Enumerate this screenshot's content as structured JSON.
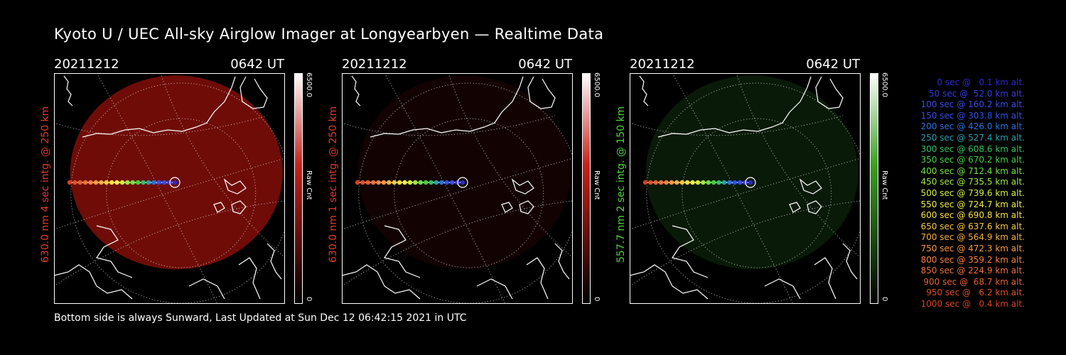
{
  "title": "Kyoto U / UEC All-sky Airglow Imager at Longyearbyen — Realtime Data",
  "footer": "Bottom side is always Sunward, Last Updated at Sun Dec 12 06:42:15 2021 in UTC",
  "panels": [
    {
      "date": "20211212",
      "time": "0642 UT",
      "side_label": "630.0 nm 4 sec intg. @ 250 km",
      "side_color": "#e03a2a",
      "cbar_max": "6500.0",
      "cbar_min": "0",
      "cbar_unit": "Raw Cnt",
      "glow_color": "#8b0f0a",
      "glow_level": 0.8,
      "cbar_color": "#c8201a"
    },
    {
      "date": "20211212",
      "time": "0642 UT",
      "side_label": "630.0 nm 1 sec intg. @ 250 km",
      "side_color": "#e03a2a",
      "cbar_max": "6500.0",
      "cbar_min": "0",
      "cbar_unit": "Raw Cnt",
      "glow_color": "#3a0806",
      "glow_level": 0.3,
      "cbar_color": "#c8201a"
    },
    {
      "date": "20211212",
      "time": "0642 UT",
      "side_label": "557.7 nm 2 sec intg. @ 150 km",
      "side_color": "#4cd43a",
      "cbar_max": "6500.0",
      "cbar_min": "0",
      "cbar_unit": "Raw Cnt",
      "glow_color": "#1a4a16",
      "glow_level": 0.35,
      "cbar_color": "#3aa020"
    }
  ],
  "legend": [
    {
      "text": "0 sec @   0.1 km alt.",
      "color": "#2a2ad0"
    },
    {
      "text": "50 sec @  52.0 km alt.",
      "color": "#3a3ae0"
    },
    {
      "text": "100 sec @ 160.2 km alt.",
      "color": "#3a4ae8"
    },
    {
      "text": "150 sec @ 303.8 km alt.",
      "color": "#3050e8"
    },
    {
      "text": "200 sec @ 426.0 km alt.",
      "color": "#2a70e0"
    },
    {
      "text": "250 sec @ 527.4 km alt.",
      "color": "#2aa0b0"
    },
    {
      "text": "300 sec @ 608.6 km alt.",
      "color": "#30c060"
    },
    {
      "text": "350 sec @ 670.2 km alt.",
      "color": "#40d040"
    },
    {
      "text": "400 sec @ 712.4 km alt.",
      "color": "#70e040"
    },
    {
      "text": "450 sec @ 735.5 km alt.",
      "color": "#a0e840"
    },
    {
      "text": "500 sec @ 739.6 km alt.",
      "color": "#d0f040"
    },
    {
      "text": "550 sec @ 724.7 km alt.",
      "color": "#f0f040"
    },
    {
      "text": "600 sec @ 690.8 km alt.",
      "color": "#f8e040"
    },
    {
      "text": "650 sec @ 637.6 km alt.",
      "color": "#f8c840"
    },
    {
      "text": "700 sec @ 564.9 km alt.",
      "color": "#f8b040"
    },
    {
      "text": "750 sec @ 472.3 km alt.",
      "color": "#f89840"
    },
    {
      "text": "800 sec @ 359.2 km alt.",
      "color": "#f88040"
    },
    {
      "text": "850 sec @ 224.9 km alt.",
      "color": "#f07038"
    },
    {
      "text": "900 sec @  68.7 km alt.",
      "color": "#e86030"
    },
    {
      "text": "950 sec @   6.2 km alt.",
      "color": "#e05028"
    },
    {
      "text": "1000 sec @   0.4 km alt.",
      "color": "#d84020"
    }
  ]
}
